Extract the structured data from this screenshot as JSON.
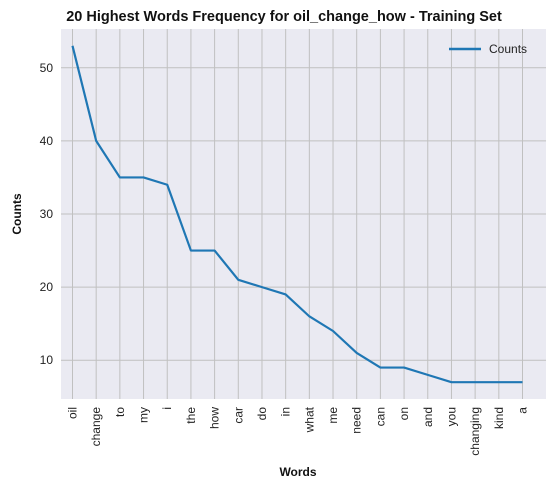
{
  "chart_data": {
    "type": "line",
    "title": "20 Highest Words Frequency for oil_change_how - Training Set",
    "xlabel": "Words",
    "ylabel": "Counts",
    "categories": [
      "oil",
      "change",
      "to",
      "my",
      "i",
      "the",
      "how",
      "car",
      "do",
      "in",
      "what",
      "me",
      "need",
      "can",
      "on",
      "and",
      "you",
      "changing",
      "kind",
      "a"
    ],
    "series": [
      {
        "name": "Counts",
        "values": [
          53,
          40,
          35,
          35,
          34,
          25,
          25,
          21,
          20,
          19,
          16,
          14,
          11,
          9,
          9,
          8,
          7,
          7,
          7,
          7
        ],
        "color": "#1f77b4"
      }
    ],
    "yticks": [
      10,
      20,
      30,
      40,
      50
    ],
    "ylim": [
      4.7,
      55.3
    ],
    "grid": true,
    "legend_position": "top-right",
    "colors": {
      "plot_bg": "#eaeaf2",
      "grid": "#c0c0c0",
      "line": "#1f77b4"
    }
  }
}
